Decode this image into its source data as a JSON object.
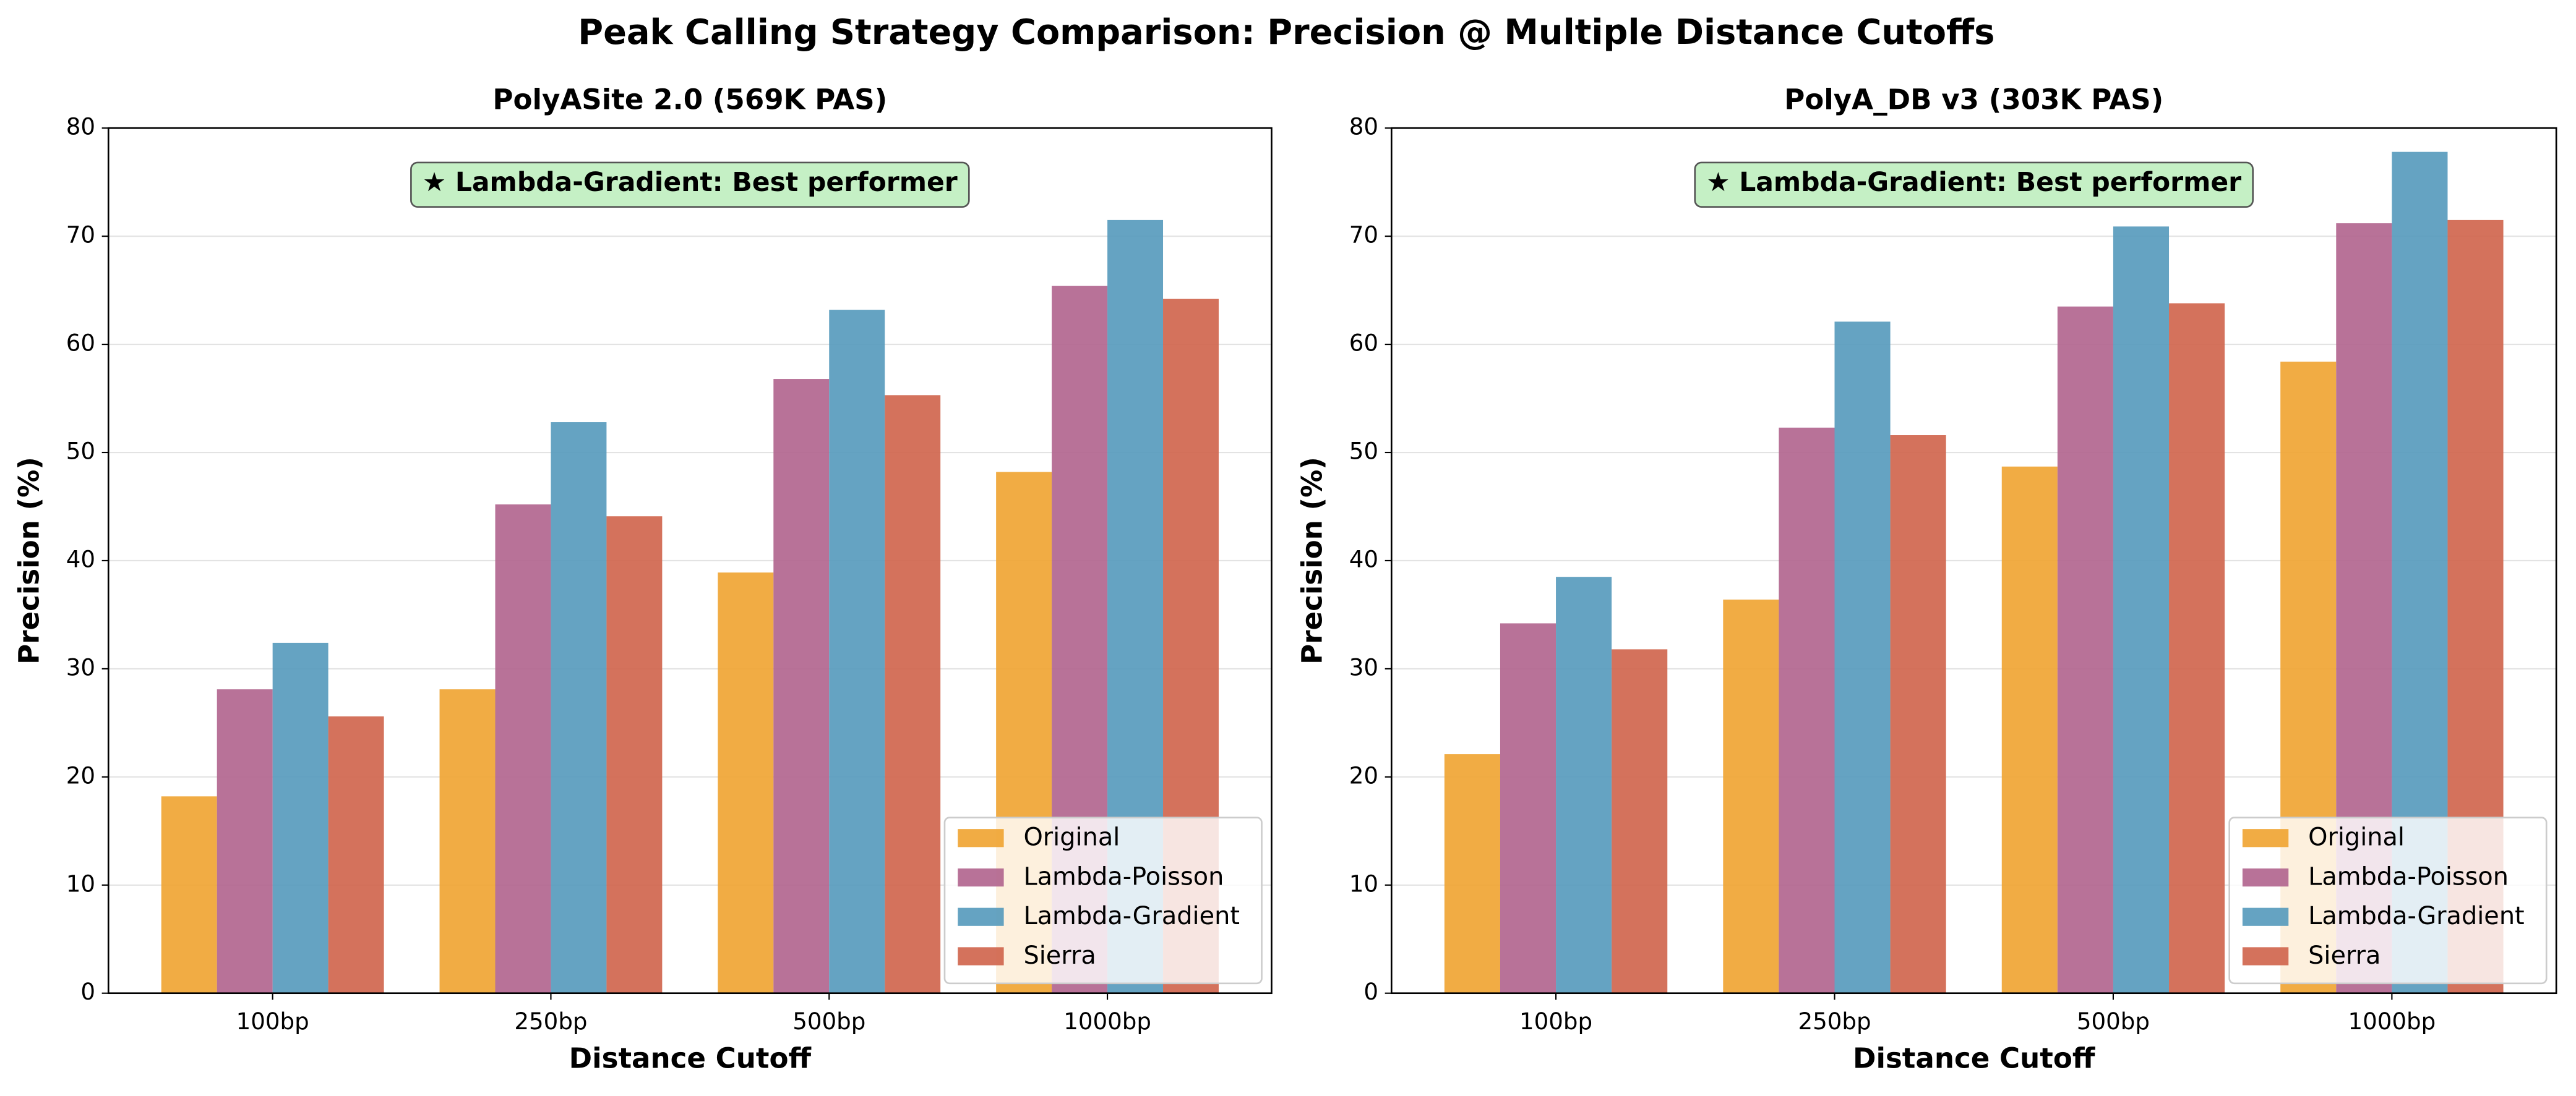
{
  "title": "Peak Calling Strategy Comparison: Precision @ Multiple Distance Cutoffs",
  "chart_data": [
    {
      "type": "bar",
      "title": "PolyASite 2.0 (569K PAS)",
      "x_label": "Distance Cutoff",
      "y_label": "Precision (%)",
      "annotation": "★ Lambda-Gradient: Best performer",
      "categories": [
        "100bp",
        "250bp",
        "500bp",
        "1000bp"
      ],
      "series": [
        {
          "name": "Original",
          "color": "#f0a330",
          "values": [
            18.2,
            28.1,
            38.9,
            48.2
          ]
        },
        {
          "name": "Lambda-Poisson",
          "color": "#b0638d",
          "values": [
            28.1,
            45.2,
            56.8,
            65.4
          ]
        },
        {
          "name": "Lambda-Gradient",
          "color": "#5499bb",
          "values": [
            32.4,
            52.8,
            63.2,
            71.5
          ]
        },
        {
          "name": "Sierra",
          "color": "#cf634a",
          "values": [
            25.6,
            44.1,
            55.3,
            64.2
          ]
        }
      ],
      "ylim": [
        0,
        80
      ],
      "yticks": [
        0,
        10,
        20,
        30,
        40,
        50,
        60,
        70,
        80
      ],
      "grid": true,
      "legend": "lower-right"
    },
    {
      "type": "bar",
      "title": "PolyA_DB v3 (303K PAS)",
      "x_label": "Distance Cutoff",
      "y_label": "Precision (%)",
      "annotation": "★ Lambda-Gradient: Best performer",
      "categories": [
        "100bp",
        "250bp",
        "500bp",
        "1000bp"
      ],
      "series": [
        {
          "name": "Original",
          "color": "#f0a330",
          "values": [
            22.1,
            36.4,
            48.7,
            58.4
          ]
        },
        {
          "name": "Lambda-Poisson",
          "color": "#b0638d",
          "values": [
            34.2,
            52.3,
            63.5,
            71.2
          ]
        },
        {
          "name": "Lambda-Gradient",
          "color": "#5499bb",
          "values": [
            38.5,
            62.1,
            70.9,
            77.8
          ]
        },
        {
          "name": "Sierra",
          "color": "#cf634a",
          "values": [
            31.8,
            51.6,
            63.8,
            71.5
          ]
        }
      ],
      "ylim": [
        0,
        80
      ],
      "yticks": [
        0,
        10,
        20,
        30,
        40,
        50,
        60,
        70,
        80
      ],
      "grid": true,
      "legend": "lower-right"
    }
  ]
}
